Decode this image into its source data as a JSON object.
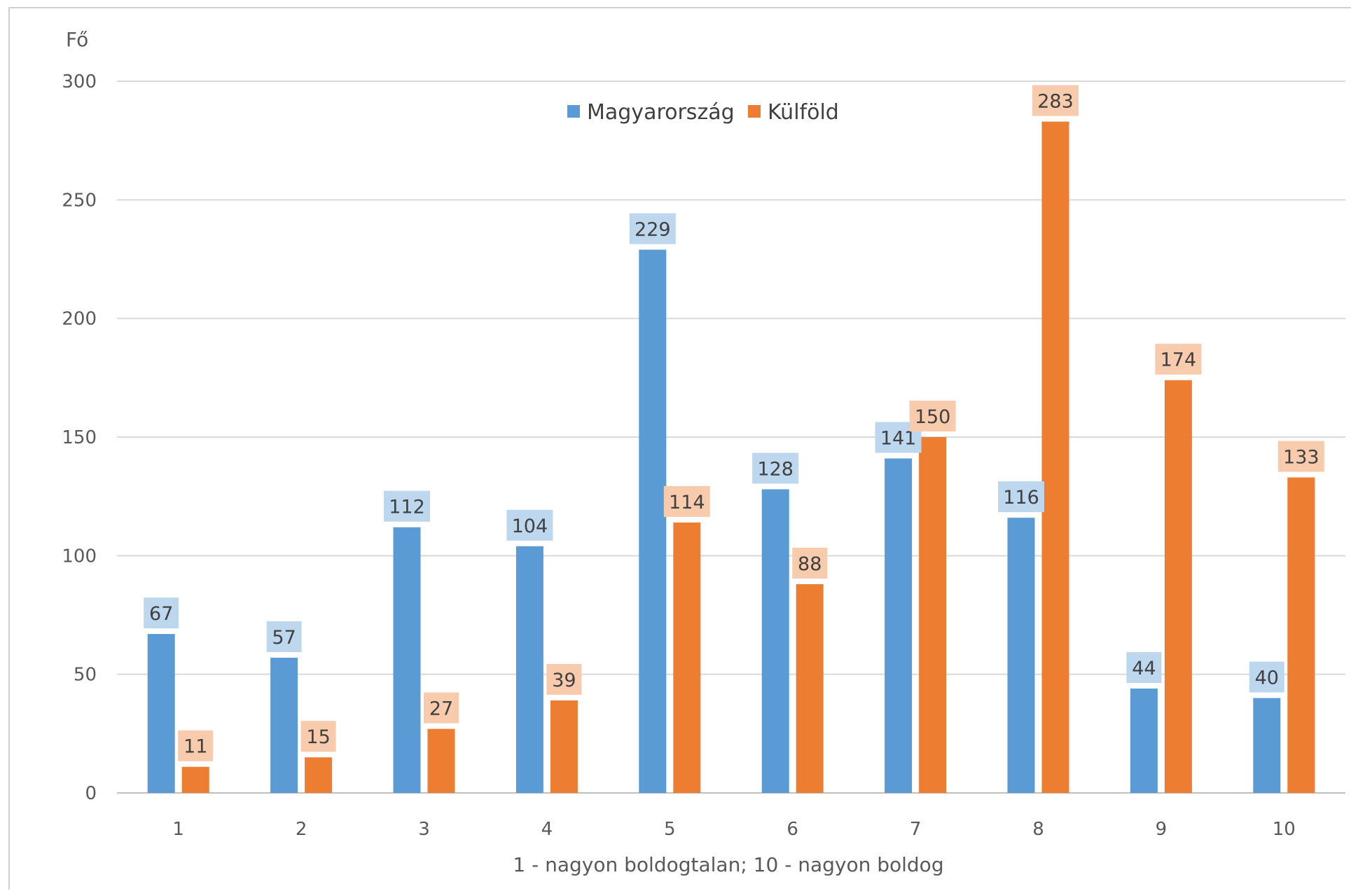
{
  "chart_data": {
    "type": "bar",
    "title": "",
    "ylabel": "Fő",
    "xlabel": "1 - nagyon boldogtalan; 10 - nagyon boldog",
    "categories": [
      "1",
      "2",
      "3",
      "4",
      "5",
      "6",
      "7",
      "8",
      "9",
      "10"
    ],
    "ylim": [
      0,
      300
    ],
    "yticks": [
      0,
      50,
      100,
      150,
      200,
      250,
      300
    ],
    "grid": true,
    "legend_position": "top-center",
    "series": [
      {
        "name": "Magyarország",
        "color": "#5b9bd5",
        "label_bg": "#bdd7ee",
        "values": [
          67,
          57,
          112,
          104,
          229,
          128,
          141,
          116,
          44,
          40
        ]
      },
      {
        "name": "Külföld",
        "color": "#ed7d31",
        "label_bg": "#f8cbad",
        "values": [
          11,
          15,
          27,
          39,
          114,
          88,
          150,
          283,
          174,
          133
        ]
      }
    ]
  }
}
